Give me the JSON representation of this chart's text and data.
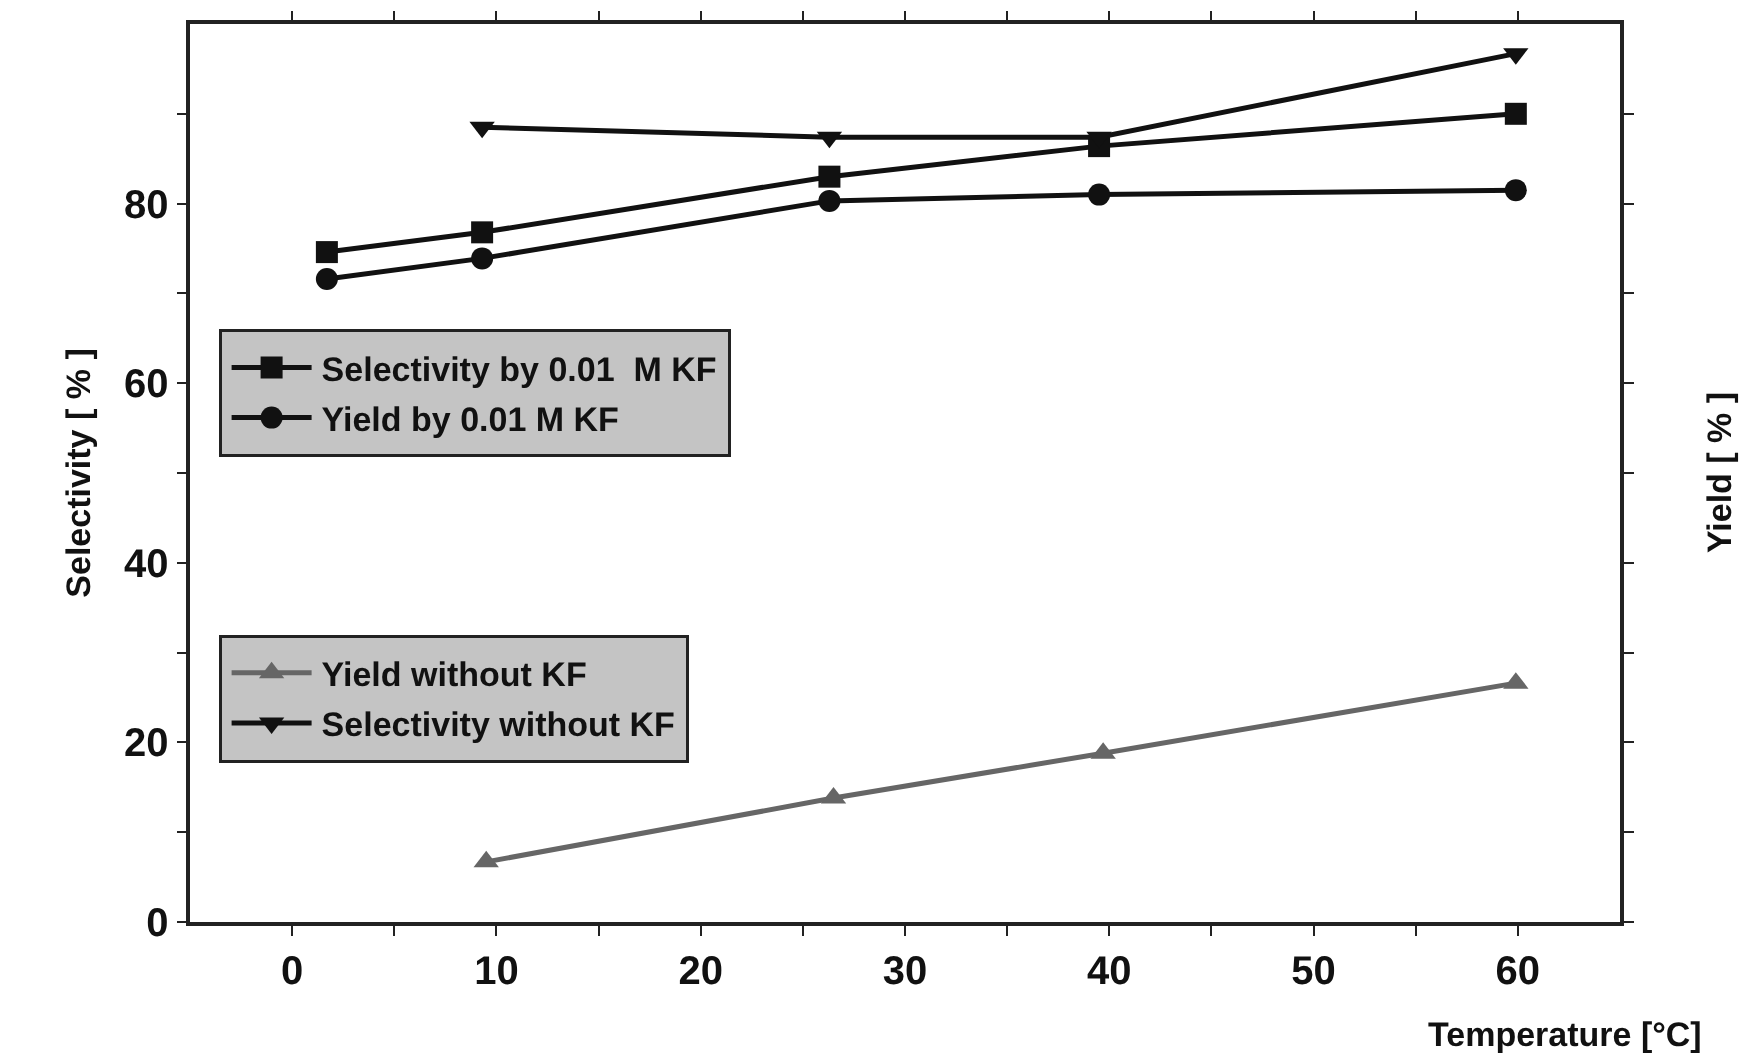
{
  "chart_data": {
    "type": "line",
    "xlabel": "Temperature [°C]",
    "ylabel": "Selectivity [ % ]",
    "y2label": "Yield [ % ]",
    "series": [
      {
        "name": "Selectivity by 0.01  M KF",
        "color": "#111111",
        "marker": "square",
        "x": [
          1.7,
          9.3,
          26.3,
          39.5,
          59.9
        ],
        "values": [
          74.6,
          76.8,
          83.0,
          86.4,
          90.0
        ]
      },
      {
        "name": "Yield by 0.01 M KF",
        "color": "#111111",
        "marker": "circle",
        "x": [
          1.7,
          9.3,
          26.3,
          39.5,
          59.9
        ],
        "values": [
          71.6,
          73.9,
          80.3,
          81.0,
          81.5
        ]
      },
      {
        "name": "Yield without KF",
        "color": "#666666",
        "marker": "triangle",
        "x": [
          9.5,
          26.5,
          39.7,
          59.9
        ],
        "values": [
          6.7,
          13.8,
          18.8,
          26.6
        ]
      },
      {
        "name": "Selectivity without KF",
        "color": "#111111",
        "marker": "triangle-down",
        "x": [
          9.3,
          26.3,
          39.5,
          59.9
        ],
        "values": [
          88.5,
          87.4,
          87.4,
          96.7
        ]
      }
    ],
    "xlim": [
      -5,
      65
    ],
    "xticks": [
      0,
      {
        "value": 5,
        "label": null
      },
      10,
      {
        "value": 15,
        "label": null
      },
      20,
      {
        "value": 25,
        "label": null
      },
      30,
      {
        "value": 35,
        "label": null
      },
      40,
      {
        "value": 45,
        "label": null
      },
      50,
      {
        "value": 55,
        "label": null
      },
      60
    ],
    "ylim": [
      0,
      100
    ],
    "yticks": [
      0,
      {
        "value": 10,
        "label": null
      },
      20,
      {
        "value": 30,
        "label": null
      },
      40,
      {
        "value": 50,
        "label": null
      },
      60,
      {
        "value": 70,
        "label": null
      },
      80,
      {
        "value": 90,
        "label": null
      }
    ],
    "legend": "left",
    "grid": false
  }
}
